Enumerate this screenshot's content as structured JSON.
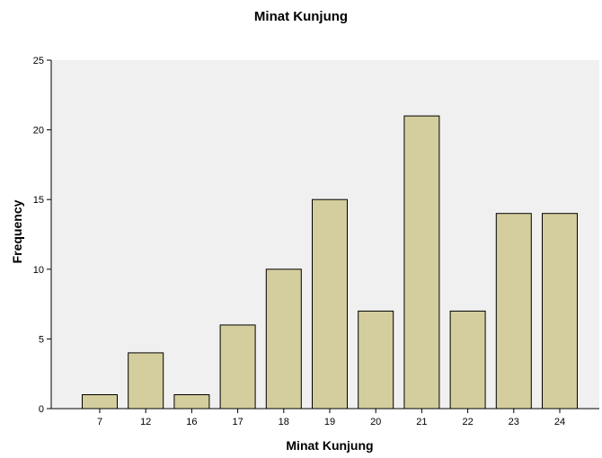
{
  "chart_data": {
    "type": "bar",
    "title": "Minat Kunjung",
    "xlabel": "Minat Kunjung",
    "ylabel": "Frequency",
    "categories": [
      "7",
      "12",
      "16",
      "17",
      "18",
      "19",
      "20",
      "21",
      "22",
      "23",
      "24"
    ],
    "values": [
      1,
      4,
      1,
      6,
      10,
      15,
      7,
      21,
      7,
      14,
      14
    ],
    "ylim": [
      0,
      25
    ],
    "yticks": [
      "0",
      "5",
      "10",
      "15",
      "20",
      "25"
    ],
    "grid": false,
    "colors": {
      "bar_fill": "#d4cd9d",
      "bar_stroke": "#000000",
      "plot_background": "#f0f0f0",
      "page_background": "#ffffff"
    }
  }
}
